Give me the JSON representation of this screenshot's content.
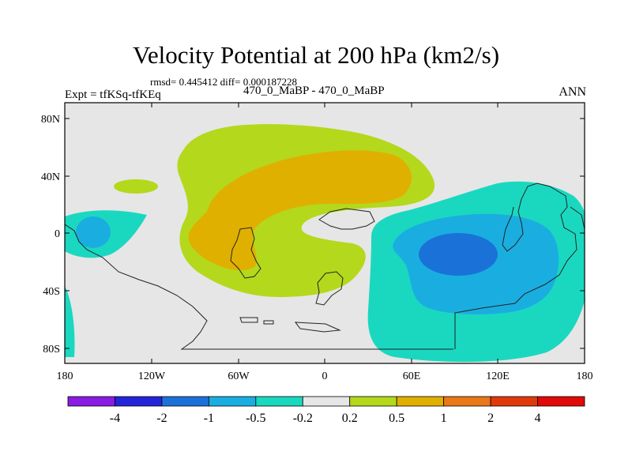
{
  "header": {
    "title": "Velocity Potential at 200 hPa (km2/s)",
    "stats": "rmsd= 0.445412 diff= 0.000187228",
    "experiment": "Expt = tfKSq-tfKEq",
    "case": "470_0_MaBP - 470_0_MaBP",
    "season": "ANN"
  },
  "axes": {
    "lat_labels": [
      "80N",
      "40N",
      "0",
      "40S",
      "80S"
    ],
    "lon_labels": [
      "180",
      "120W",
      "60W",
      "0",
      "60E",
      "120E",
      "180"
    ]
  },
  "colorbar": {
    "labels": [
      "-4",
      "-2",
      "-1",
      "-0.5",
      "-0.2",
      "0.2",
      "0.5",
      "1",
      "2",
      "4"
    ],
    "colors": [
      "#8a1be2",
      "#2424d8",
      "#1a72d8",
      "#1aaee0",
      "#1ad8c0",
      "#e6e6e6",
      "#b4d81c",
      "#e0b000",
      "#e87818",
      "#e03a0a",
      "#e00a0a"
    ]
  },
  "colors": {
    "background": "#e6e6e6",
    "pos_light": "#b4d81c",
    "pos_mid": "#e0b000",
    "neg_light": "#1ad8c0",
    "neg_mid": "#1aaee0",
    "neg_strong": "#1a72d8"
  }
}
